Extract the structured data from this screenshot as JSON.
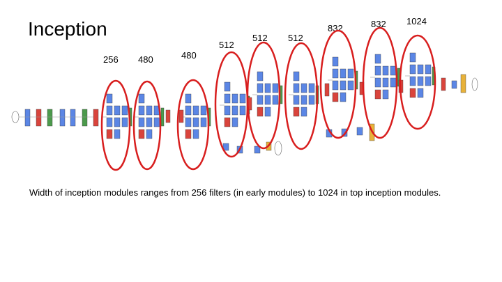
{
  "slide": {
    "title": "Inception",
    "caption": "Width of inception modules ranges from 256 filters (in early modules) to 1024 in top inception modules."
  },
  "module_widths": [
    "256",
    "480",
    "480",
    "512",
    "512",
    "512",
    "832",
    "832",
    "1024"
  ],
  "colors": {
    "conv": "#5b86e5",
    "pool": "#d9443c",
    "concat": "#4c9a4c",
    "softmax": "#e8b23a",
    "circle": "#d81e1e"
  }
}
